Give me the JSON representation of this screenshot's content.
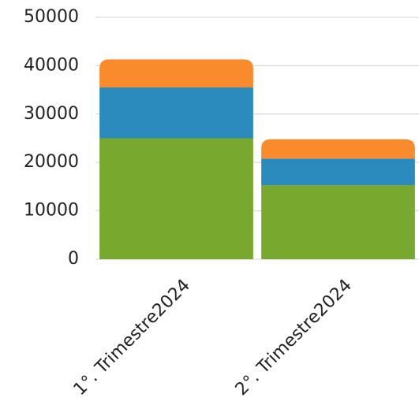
{
  "chart_data": {
    "type": "stacked_bar",
    "categories": [
      "1°. Trimestre2024",
      "2°. Trimestre2024"
    ],
    "series": [
      {
        "color": "#78a82e",
        "values": [
          25000,
          15300
        ]
      },
      {
        "color": "#2b8bbd",
        "values": [
          10500,
          5500
        ]
      },
      {
        "color": "#f98b2c",
        "values": [
          5800,
          4000
        ]
      }
    ],
    "ylim": [
      0,
      50000
    ],
    "yticks": [
      0,
      10000,
      20000,
      30000,
      40000,
      50000
    ],
    "grid": true
  }
}
